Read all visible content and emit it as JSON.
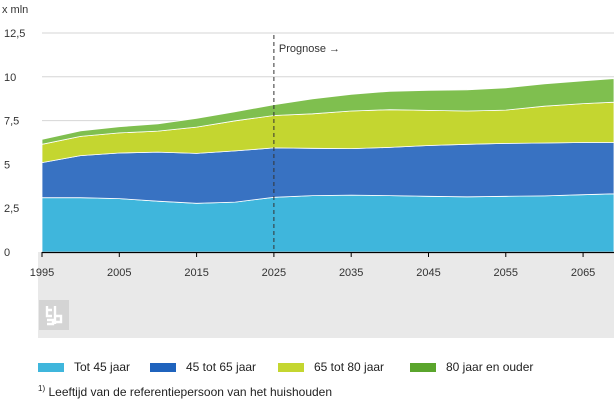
{
  "chart_data": {
    "type": "area",
    "stacked": true,
    "title": "",
    "ylabel": "x mln",
    "xlabel": "",
    "xlim": [
      1995,
      2069
    ],
    "ylim": [
      0,
      12.5
    ],
    "x_ticks": [
      "1995",
      "2005",
      "2015",
      "2025",
      "2035",
      "2045",
      "2055",
      "2065"
    ],
    "y_ticks": [
      "0",
      "2,5",
      "5",
      "7,5",
      "10",
      "12,5"
    ],
    "annotation": {
      "label": "Prognose →",
      "x": 2025
    },
    "x": [
      1995,
      2000,
      2005,
      2010,
      2015,
      2020,
      2025,
      2030,
      2035,
      2040,
      2045,
      2050,
      2055,
      2060,
      2065,
      2069
    ],
    "series": [
      {
        "name": "Tot 45 jaar",
        "color": "#3fb6dc",
        "values": [
          3.1,
          3.1,
          3.05,
          2.9,
          2.78,
          2.85,
          3.12,
          3.22,
          3.25,
          3.22,
          3.18,
          3.15,
          3.18,
          3.2,
          3.27,
          3.32
        ]
      },
      {
        "name": "45 tot 65 jaar",
        "color": "#3872c2",
        "values": [
          2.0,
          2.4,
          2.6,
          2.8,
          2.85,
          2.92,
          2.82,
          2.7,
          2.65,
          2.75,
          2.9,
          3.0,
          3.02,
          3.02,
          2.98,
          2.93
        ]
      },
      {
        "name": "65 tot 80 jaar",
        "color": "#c4d630",
        "values": [
          1.05,
          1.1,
          1.15,
          1.2,
          1.5,
          1.72,
          1.85,
          1.97,
          2.15,
          2.15,
          2.0,
          1.9,
          1.9,
          2.1,
          2.22,
          2.3
        ]
      },
      {
        "name": "80 jaar en ouder",
        "color": "#7fbf4f",
        "values": [
          0.28,
          0.32,
          0.35,
          0.42,
          0.5,
          0.52,
          0.62,
          0.85,
          0.95,
          1.05,
          1.15,
          1.2,
          1.27,
          1.28,
          1.3,
          1.35
        ]
      }
    ],
    "legend": [
      {
        "label": "Tot 45 jaar",
        "color": "#3fb6dc"
      },
      {
        "label": "45 tot 65 jaar",
        "color": "#1f63bd"
      },
      {
        "label": "65 tot 80 jaar",
        "color": "#c4d630"
      },
      {
        "label": "80 jaar en ouder",
        "color": "#5aa52c"
      }
    ],
    "legend_position": "bottom"
  },
  "footnote": {
    "marker": "1)",
    "text": "Leeftijd van de referentiepersoon van het huishouden"
  },
  "logo": {
    "icon": "cbs-logo-icon"
  },
  "colors": {
    "band": "#e9e9e9",
    "grid": "#d6d6d6",
    "axis": "#000000"
  }
}
